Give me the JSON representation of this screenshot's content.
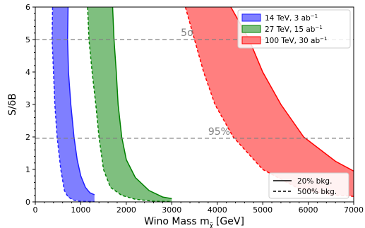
{
  "chart_data": {
    "type": "area",
    "xlabel": "Wino Mass m",
    "xlabel_sub": "χ̃",
    "xlabel_unit": "[GeV]",
    "ylabel": "S/δB",
    "xlim": [
      0,
      7000
    ],
    "ylim": [
      0,
      6
    ],
    "xticks": [
      0,
      1000,
      2000,
      3000,
      4000,
      5000,
      6000,
      7000
    ],
    "yticks": [
      0,
      1,
      2,
      3,
      4,
      5,
      6
    ],
    "grid": false,
    "legend_position": "top-right",
    "series": [
      {
        "name": "14 TeV, 3 ab",
        "name_sup": "−1",
        "color": "#1f1fff",
        "fill": "#7f7fff",
        "solid_20pct_bkg": [
          [
            720,
            6
          ],
          [
            710,
            5
          ],
          [
            730,
            4
          ],
          [
            780,
            3
          ],
          [
            850,
            2
          ],
          [
            920,
            1.3
          ],
          [
            1000,
            0.8
          ],
          [
            1100,
            0.45
          ],
          [
            1200,
            0.28
          ],
          [
            1300,
            0.22
          ]
        ],
        "dashed_500pct_bkg": [
          [
            380,
            6
          ],
          [
            370,
            5
          ],
          [
            400,
            4
          ],
          [
            430,
            3
          ],
          [
            480,
            2
          ],
          [
            560,
            1
          ],
          [
            640,
            0.35
          ],
          [
            720,
            0.15
          ],
          [
            850,
            0.05
          ],
          [
            1000,
            0.02
          ],
          [
            1300,
            0.01
          ]
        ]
      },
      {
        "name": "27 TeV, 15 ab",
        "name_sup": "−1",
        "color": "#008000",
        "fill": "#7fbf7f",
        "solid_20pct_bkg": [
          [
            1700,
            6
          ],
          [
            1730,
            5
          ],
          [
            1780,
            4
          ],
          [
            1820,
            3
          ],
          [
            1900,
            2
          ],
          [
            2000,
            1.3
          ],
          [
            2200,
            0.75
          ],
          [
            2500,
            0.35
          ],
          [
            2800,
            0.15
          ],
          [
            3000,
            0.1
          ]
        ],
        "dashed_500pct_bkg": [
          [
            1150,
            6
          ],
          [
            1180,
            5
          ],
          [
            1250,
            4
          ],
          [
            1330,
            3
          ],
          [
            1400,
            2
          ],
          [
            1500,
            1
          ],
          [
            1650,
            0.45
          ],
          [
            1900,
            0.2
          ],
          [
            2200,
            0.08
          ],
          [
            2600,
            0.02
          ],
          [
            3000,
            0.01
          ]
        ]
      },
      {
        "name": "100 TeV, 30 ab",
        "name_sup": "−1",
        "color": "#ff0000",
        "fill": "#ff7f7f",
        "solid_20pct_bkg": [
          [
            4300,
            6
          ],
          [
            4700,
            5
          ],
          [
            5000,
            4
          ],
          [
            5400,
            3
          ],
          [
            5900,
            2
          ],
          [
            6600,
            1.25
          ],
          [
            7000,
            0.95
          ]
        ],
        "dashed_500pct_bkg": [
          [
            3300,
            6
          ],
          [
            3500,
            5
          ],
          [
            3700,
            4
          ],
          [
            3950,
            3
          ],
          [
            4350,
            2
          ],
          [
            5000,
            1
          ],
          [
            5800,
            0.4
          ],
          [
            6500,
            0.22
          ],
          [
            7000,
            0.17
          ]
        ]
      }
    ],
    "reference_lines": [
      {
        "y": 5,
        "label": "5σ",
        "label_x": 3200
      },
      {
        "y": 1.96,
        "label": "95%",
        "label_x": 3800
      }
    ],
    "style_legend": [
      {
        "label": "20% bkg.",
        "style": "solid"
      },
      {
        "label": "500% bkg.",
        "style": "dashed"
      }
    ]
  }
}
